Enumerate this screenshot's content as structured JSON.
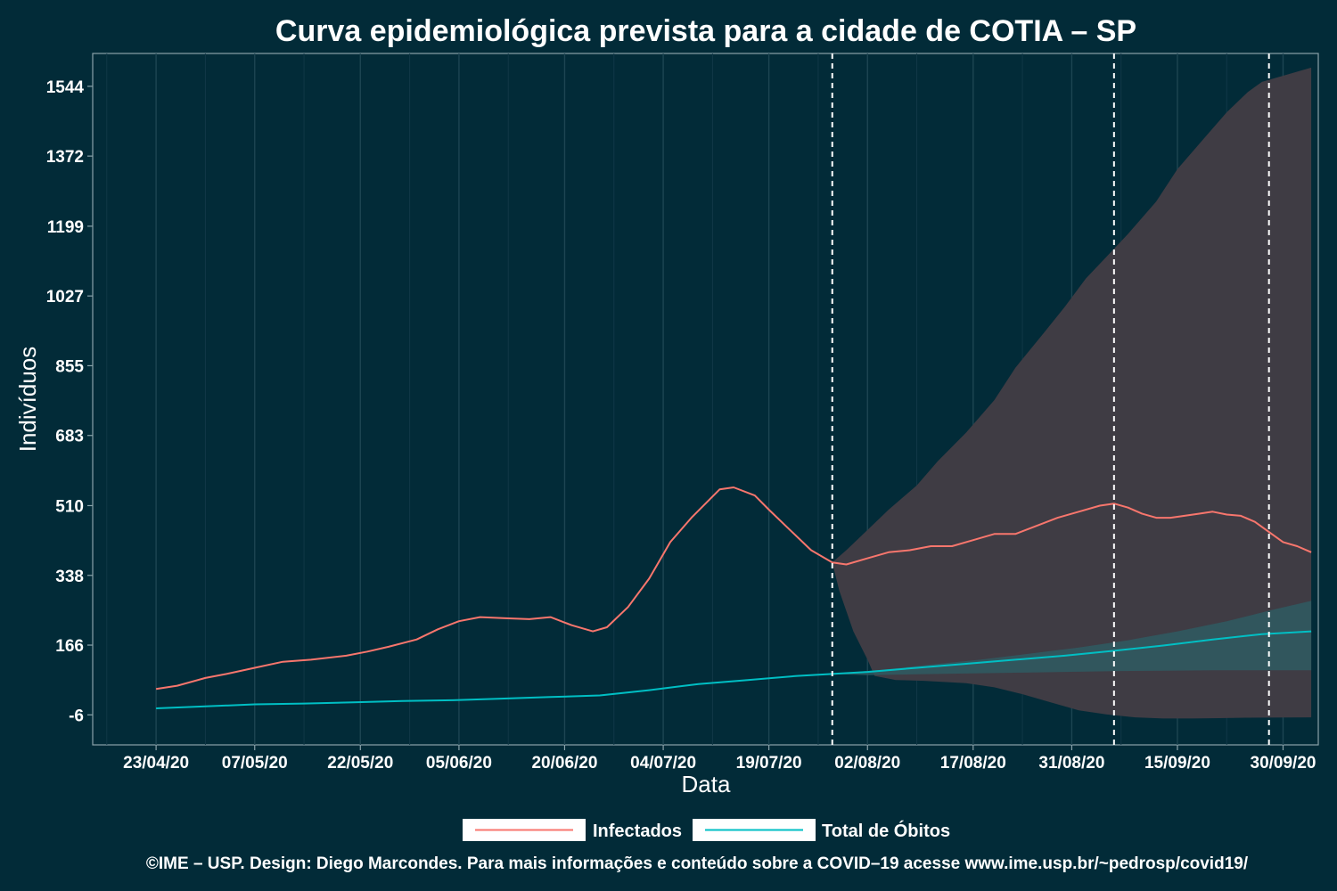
{
  "chart_data": {
    "type": "line",
    "title": "Curva epidemiológica prevista para a cidade de COTIA – SP",
    "xlabel": "Data",
    "ylabel": "Indivíduos",
    "x_range": [
      "2020-04-14",
      "2020-10-05"
    ],
    "ylim": [
      -80,
      1625
    ],
    "y_ticks": [
      -6,
      166,
      338,
      510,
      683,
      855,
      1027,
      1199,
      1372,
      1544
    ],
    "y_tick_labels": [
      "-6",
      "166",
      "338",
      "510",
      "683",
      "855",
      "1027",
      "1199",
      "1372",
      "1544"
    ],
    "x_ticks": [
      "2020-04-23",
      "2020-05-07",
      "2020-05-22",
      "2020-06-05",
      "2020-06-20",
      "2020-07-04",
      "2020-07-19",
      "2020-08-02",
      "2020-08-17",
      "2020-08-31",
      "2020-09-15",
      "2020-09-30"
    ],
    "x_tick_labels": [
      "23/04/20",
      "07/05/20",
      "22/05/20",
      "05/06/20",
      "20/06/20",
      "04/07/20",
      "19/07/20",
      "02/08/20",
      "17/08/20",
      "31/08/20",
      "15/09/20",
      "30/09/20"
    ],
    "vlines": [
      "2020-07-28",
      "2020-09-06",
      "2020-09-28"
    ],
    "grid": true,
    "legend_position": "bottom",
    "series": [
      {
        "name": "Infectados",
        "color": "#f8766d",
        "points": [
          [
            "2020-04-23",
            58
          ],
          [
            "2020-04-26",
            66
          ],
          [
            "2020-04-30",
            85
          ],
          [
            "2020-05-03",
            95
          ],
          [
            "2020-05-07",
            110
          ],
          [
            "2020-05-11",
            125
          ],
          [
            "2020-05-15",
            130
          ],
          [
            "2020-05-20",
            140
          ],
          [
            "2020-05-23",
            150
          ],
          [
            "2020-05-26",
            162
          ],
          [
            "2020-05-30",
            180
          ],
          [
            "2020-06-02",
            205
          ],
          [
            "2020-06-05",
            225
          ],
          [
            "2020-06-08",
            235
          ],
          [
            "2020-06-12",
            232
          ],
          [
            "2020-06-15",
            230
          ],
          [
            "2020-06-18",
            235
          ],
          [
            "2020-06-21",
            215
          ],
          [
            "2020-06-24",
            200
          ],
          [
            "2020-06-26",
            210
          ],
          [
            "2020-06-29",
            260
          ],
          [
            "2020-07-02",
            330
          ],
          [
            "2020-07-05",
            420
          ],
          [
            "2020-07-08",
            480
          ],
          [
            "2020-07-12",
            550
          ],
          [
            "2020-07-14",
            555
          ],
          [
            "2020-07-17",
            535
          ],
          [
            "2020-07-19",
            500
          ],
          [
            "2020-07-22",
            450
          ],
          [
            "2020-07-25",
            400
          ],
          [
            "2020-07-28",
            370
          ],
          [
            "2020-07-30",
            365
          ],
          [
            "2020-08-02",
            380
          ],
          [
            "2020-08-05",
            395
          ],
          [
            "2020-08-08",
            400
          ],
          [
            "2020-08-11",
            410
          ],
          [
            "2020-08-14",
            410
          ],
          [
            "2020-08-17",
            425
          ],
          [
            "2020-08-20",
            440
          ],
          [
            "2020-08-23",
            440
          ],
          [
            "2020-08-26",
            460
          ],
          [
            "2020-08-29",
            480
          ],
          [
            "2020-09-01",
            495
          ],
          [
            "2020-09-04",
            510
          ],
          [
            "2020-09-06",
            515
          ],
          [
            "2020-09-08",
            505
          ],
          [
            "2020-09-10",
            490
          ],
          [
            "2020-09-12",
            480
          ],
          [
            "2020-09-14",
            480
          ],
          [
            "2020-09-16",
            485
          ],
          [
            "2020-09-18",
            490
          ],
          [
            "2020-09-20",
            495
          ],
          [
            "2020-09-22",
            488
          ],
          [
            "2020-09-24",
            485
          ],
          [
            "2020-09-26",
            470
          ],
          [
            "2020-09-28",
            445
          ],
          [
            "2020-09-30",
            420
          ],
          [
            "2020-10-02",
            410
          ],
          [
            "2020-10-04",
            395
          ]
        ]
      },
      {
        "name": "Total de Óbitos",
        "color": "#00bfc4",
        "points": [
          [
            "2020-04-23",
            10
          ],
          [
            "2020-04-30",
            15
          ],
          [
            "2020-05-07",
            20
          ],
          [
            "2020-05-14",
            22
          ],
          [
            "2020-05-21",
            25
          ],
          [
            "2020-05-28",
            28
          ],
          [
            "2020-06-04",
            30
          ],
          [
            "2020-06-11",
            34
          ],
          [
            "2020-06-18",
            38
          ],
          [
            "2020-06-25",
            42
          ],
          [
            "2020-07-02",
            55
          ],
          [
            "2020-07-09",
            70
          ],
          [
            "2020-07-16",
            80
          ],
          [
            "2020-07-23",
            90
          ],
          [
            "2020-07-28",
            95
          ],
          [
            "2020-08-02",
            100
          ],
          [
            "2020-08-09",
            110
          ],
          [
            "2020-08-16",
            120
          ],
          [
            "2020-08-23",
            130
          ],
          [
            "2020-08-30",
            140
          ],
          [
            "2020-09-06",
            152
          ],
          [
            "2020-09-13",
            165
          ],
          [
            "2020-09-20",
            180
          ],
          [
            "2020-09-27",
            193
          ],
          [
            "2020-10-04",
            200
          ]
        ]
      }
    ],
    "bands": [
      {
        "series": "Infectados",
        "color": "#3f3c44",
        "upper": [
          [
            "2020-07-28",
            370
          ],
          [
            "2020-07-30",
            400
          ],
          [
            "2020-08-02",
            450
          ],
          [
            "2020-08-05",
            500
          ],
          [
            "2020-08-09",
            560
          ],
          [
            "2020-08-12",
            620
          ],
          [
            "2020-08-16",
            690
          ],
          [
            "2020-08-20",
            770
          ],
          [
            "2020-08-23",
            850
          ],
          [
            "2020-08-27",
            935
          ],
          [
            "2020-08-30",
            1000
          ],
          [
            "2020-09-02",
            1070
          ],
          [
            "2020-09-05",
            1125
          ],
          [
            "2020-09-08",
            1180
          ],
          [
            "2020-09-12",
            1260
          ],
          [
            "2020-09-15",
            1340
          ],
          [
            "2020-09-19",
            1420
          ],
          [
            "2020-09-22",
            1480
          ],
          [
            "2020-09-25",
            1530
          ],
          [
            "2020-09-27",
            1555
          ],
          [
            "2020-10-04",
            1590
          ]
        ],
        "lower": [
          [
            "2020-07-28",
            370
          ],
          [
            "2020-07-29",
            300
          ],
          [
            "2020-07-31",
            200
          ],
          [
            "2020-08-02",
            130
          ],
          [
            "2020-08-03",
            90
          ],
          [
            "2020-08-06",
            80
          ],
          [
            "2020-08-10",
            78
          ],
          [
            "2020-08-16",
            72
          ],
          [
            "2020-08-20",
            62
          ],
          [
            "2020-08-24",
            45
          ],
          [
            "2020-08-28",
            25
          ],
          [
            "2020-09-01",
            5
          ],
          [
            "2020-09-05",
            -5
          ],
          [
            "2020-09-09",
            -12
          ],
          [
            "2020-09-13",
            -15
          ],
          [
            "2020-09-17",
            -15
          ],
          [
            "2020-09-21",
            -14
          ],
          [
            "2020-09-25",
            -13
          ],
          [
            "2020-10-04",
            -12
          ]
        ]
      },
      {
        "series": "Total de Óbitos",
        "color": "#2f5a62",
        "upper": [
          [
            "2020-07-28",
            95
          ],
          [
            "2020-08-04",
            105
          ],
          [
            "2020-08-11",
            118
          ],
          [
            "2020-08-18",
            130
          ],
          [
            "2020-08-25",
            145
          ],
          [
            "2020-09-01",
            160
          ],
          [
            "2020-09-08",
            178
          ],
          [
            "2020-09-15",
            200
          ],
          [
            "2020-09-22",
            225
          ],
          [
            "2020-09-29",
            255
          ],
          [
            "2020-10-04",
            275
          ]
        ],
        "lower": [
          [
            "2020-07-28",
            95
          ],
          [
            "2020-08-02",
            92
          ],
          [
            "2020-08-09",
            94
          ],
          [
            "2020-08-16",
            96
          ],
          [
            "2020-08-23",
            98
          ],
          [
            "2020-08-30",
            100
          ],
          [
            "2020-09-06",
            102
          ],
          [
            "2020-09-13",
            103
          ],
          [
            "2020-09-20",
            104
          ],
          [
            "2020-09-27",
            104
          ],
          [
            "2020-10-04",
            104
          ]
        ]
      }
    ]
  },
  "caption": "©IME – USP. Design: Diego Marcondes. Para mais informações e conteúdo sobre a COVID–19 acesse www.ime.usp.br/~pedrosp/covid19/"
}
